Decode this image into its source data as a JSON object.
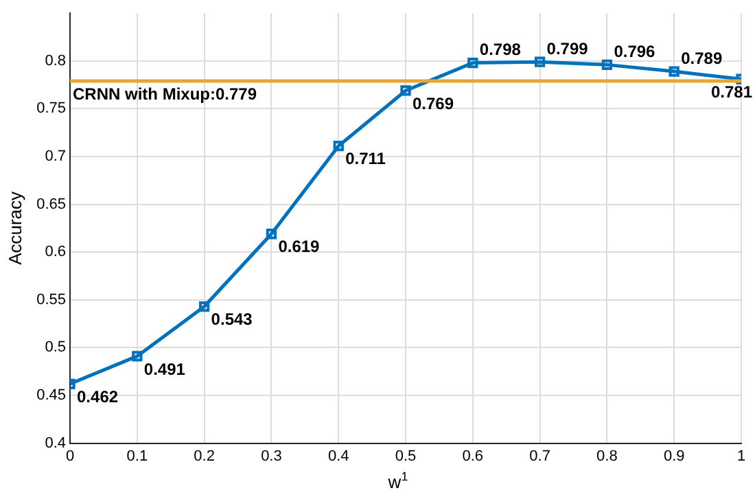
{
  "chart_data": {
    "type": "line",
    "xlabel": "w$^{1}$",
    "ylabel": "Accuracy",
    "x": [
      0,
      0.1,
      0.2,
      0.3,
      0.4,
      0.5,
      0.6,
      0.7,
      0.8,
      0.9,
      1
    ],
    "series": [
      {
        "color": "#0072bd",
        "values": [
          0.462,
          0.491,
          0.543,
          0.619,
          0.711,
          0.769,
          0.798,
          0.799,
          0.796,
          0.789,
          0.781
        ]
      }
    ],
    "xlim": [
      0,
      1
    ],
    "xticks": [
      0,
      0.1,
      0.2,
      0.3,
      0.4,
      0.5,
      0.6,
      0.7,
      0.8,
      0.9,
      1
    ],
    "ylim": [
      0.4,
      0.85
    ],
    "yticks": [
      0.4,
      0.45,
      0.5,
      0.55,
      0.6,
      0.65,
      0.7,
      0.75,
      0.8
    ],
    "ref_lines": [
      {
        "axis": "y",
        "value": 0.779,
        "label": "CRNN with Mixup:0.779",
        "color": "#e8a530"
      }
    ],
    "grid": true,
    "legend": false,
    "marker": "square",
    "line_style": "solid",
    "data_labels": true
  }
}
